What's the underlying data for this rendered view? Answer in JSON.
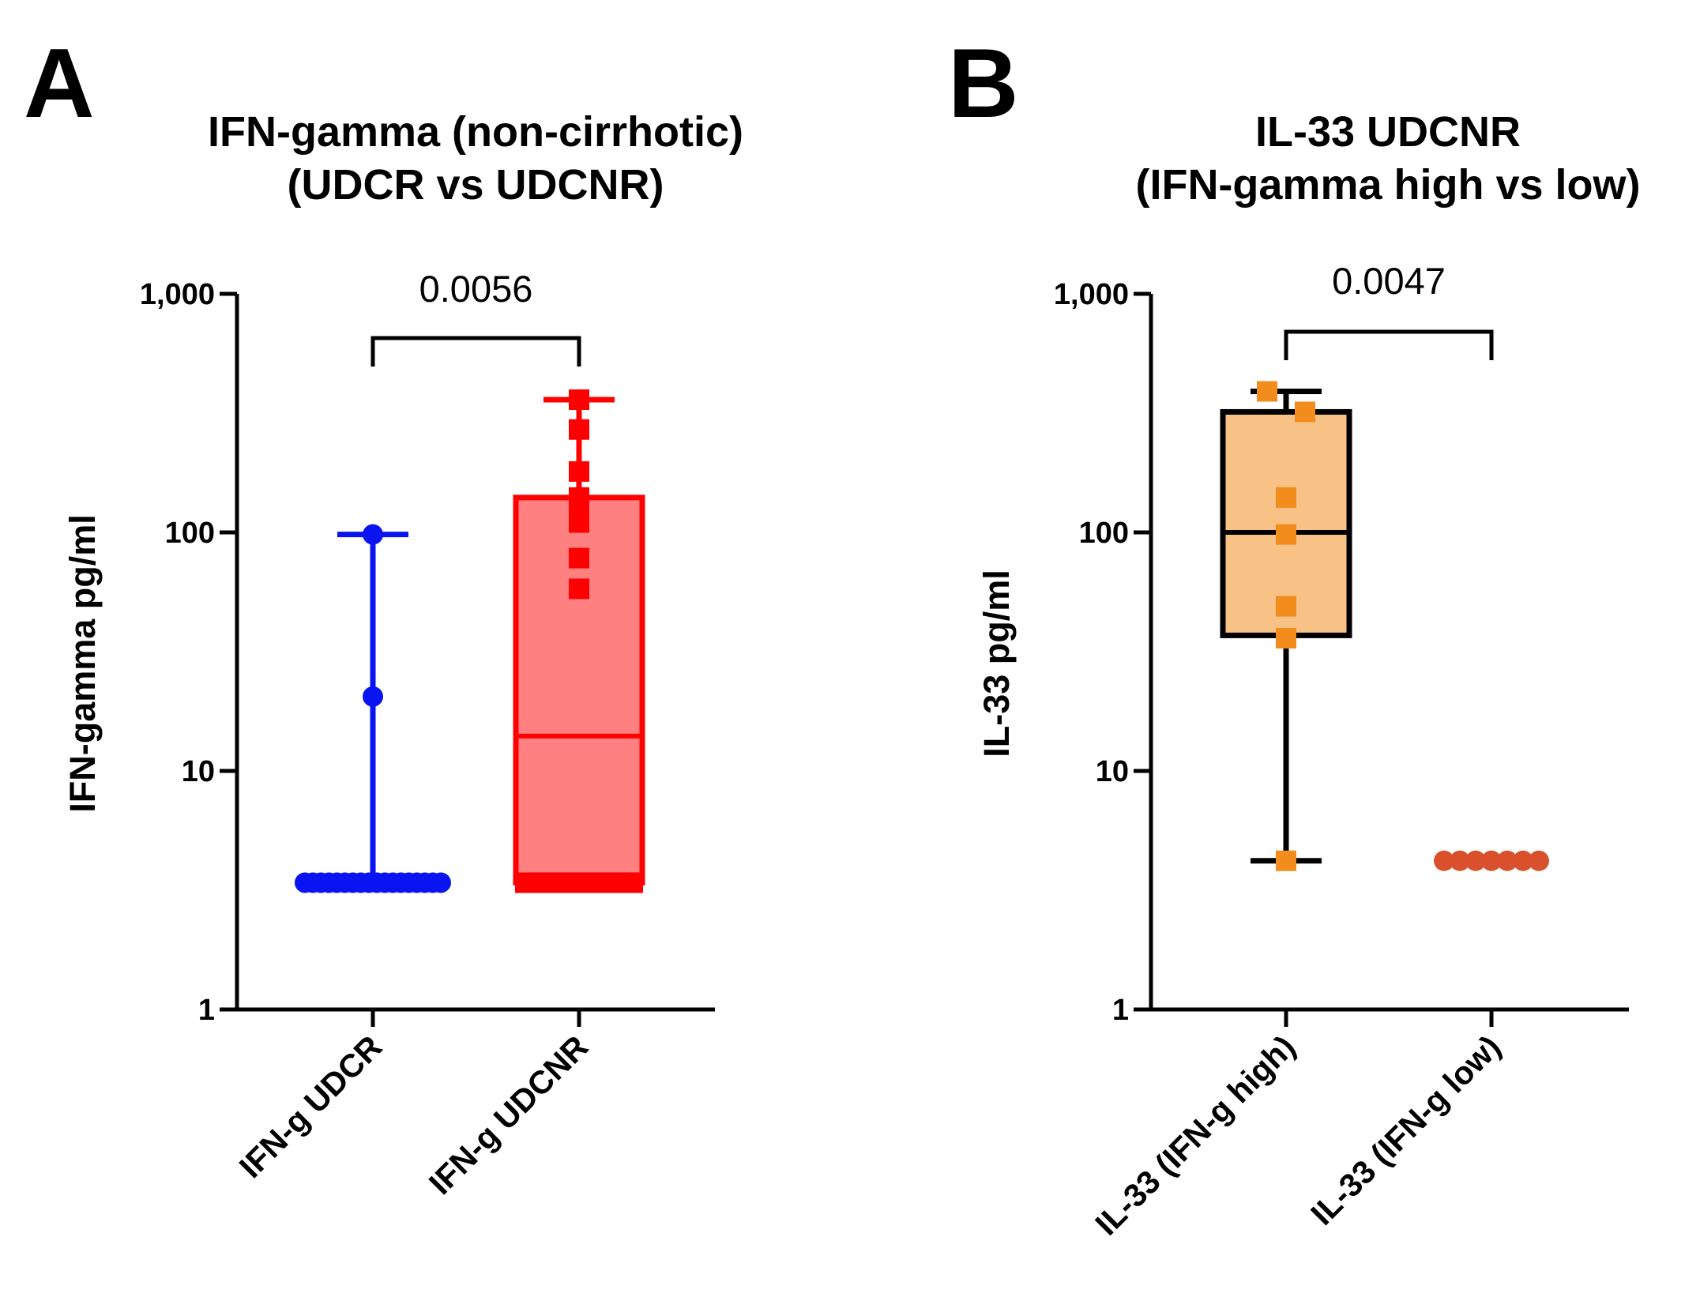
{
  "chart_data": [
    {
      "panel": "A",
      "type": "box",
      "title_lines": [
        "IFN-gamma (non-cirrhotic)",
        "(UDCR vs UDCNR)"
      ],
      "ylabel": "IFN-gamma pg/ml",
      "yscale": "log",
      "ylim": [
        1,
        1000
      ],
      "yticks": [
        {
          "value": 1,
          "label": "1"
        },
        {
          "value": 10,
          "label": "10"
        },
        {
          "value": 100,
          "label": "100"
        },
        {
          "value": 1000,
          "label": "1,000"
        }
      ],
      "categories": [
        "IFN-g UDCR",
        "IFN-g UDCNR"
      ],
      "series": [
        {
          "name": "IFN-g UDCR",
          "color": "#0a14f0",
          "fill": "#0a14f0",
          "marker": "circle",
          "min": 3.4,
          "q1": 3.4,
          "median": 3.4,
          "q3": 3.4,
          "max": 98,
          "points": [
            98,
            20.5,
            3.4,
            3.4,
            3.4,
            3.4,
            3.4,
            3.4,
            3.4,
            3.4,
            3.4,
            3.4,
            3.4,
            3.4,
            3.4,
            3.4,
            3.4,
            3.4,
            3.4,
            3.4
          ]
        },
        {
          "name": "IFN-g UDCNR",
          "color": "#ff0000",
          "fill": "#ff8080",
          "marker": "square",
          "min": 3.4,
          "q1": 3.4,
          "median": 14,
          "q3": 140,
          "max": 360,
          "points": [
            360,
            270,
            180,
            140,
            125,
            110,
            78,
            58,
            3.4,
            3.4,
            3.4,
            3.4,
            3.4,
            3.4,
            3.4,
            3.4,
            3.4
          ]
        }
      ],
      "comparison": {
        "groups": [
          0,
          1
        ],
        "p_value": "0.0056"
      }
    },
    {
      "panel": "B",
      "type": "box",
      "title_lines": [
        "IL-33 UDCNR",
        "(IFN-gamma high vs low)"
      ],
      "ylabel": "IL-33 pg/ml",
      "yscale": "log",
      "ylim": [
        1,
        1000
      ],
      "yticks": [
        {
          "value": 1,
          "label": "1"
        },
        {
          "value": 10,
          "label": "10"
        },
        {
          "value": 100,
          "label": "100"
        },
        {
          "value": 1000,
          "label": "1,000"
        }
      ],
      "categories": [
        "IL-33 (IFN-g high)",
        "IL-33 (IFN-g low)"
      ],
      "series": [
        {
          "name": "IL-33 (IFN-g high)",
          "color": "#000000",
          "fill": "#f8c185",
          "point_color": "#f28c1c",
          "marker": "square",
          "min": 4.2,
          "q1": 37,
          "median": 100,
          "q3": 320,
          "max": 390,
          "points": [
            390,
            320,
            140,
            98,
            49,
            36,
            4.2
          ]
        },
        {
          "name": "IL-33 (IFN-g low)",
          "color": "#d9512c",
          "fill": "#d9512c",
          "point_color": "#d9512c",
          "marker": "circle",
          "points": [
            4.2,
            4.2,
            4.2,
            4.2,
            4.2,
            4.2,
            4.2
          ]
        }
      ],
      "comparison": {
        "groups": [
          0,
          1
        ],
        "p_value": "0.0047"
      }
    }
  ]
}
